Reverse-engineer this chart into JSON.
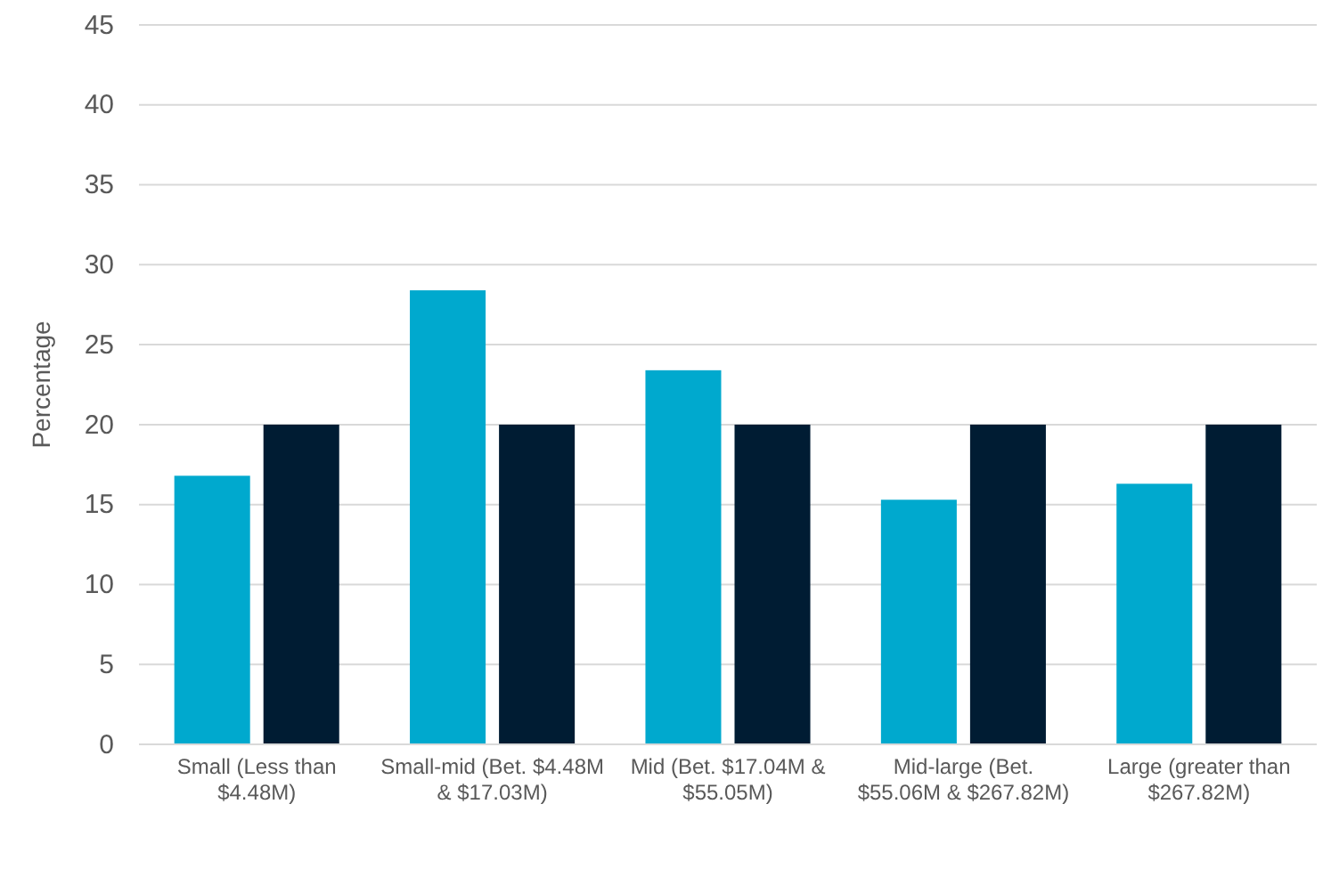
{
  "chart_data": {
    "type": "bar",
    "ylabel": "Percentage",
    "categories": [
      "Small (Less than $4.48M)",
      "Small-mid (Bet. $4.48M & $17.03M)",
      "Mid (Bet. $17.04M & $55.05M)",
      "Mid-large (Bet. $55.06M & $267.82M)",
      "Large (greater than $267.82M)"
    ],
    "series": [
      {
        "color": "#00a9ce",
        "values": [
          16.8,
          28.4,
          23.4,
          15.3,
          16.3
        ]
      },
      {
        "color": "#001c33",
        "values": [
          20,
          20,
          20,
          20,
          20
        ]
      }
    ],
    "ylim": [
      0,
      45
    ],
    "yticks": [
      0,
      5,
      10,
      15,
      20,
      25,
      30,
      35,
      40,
      45
    ],
    "grid": "y"
  }
}
